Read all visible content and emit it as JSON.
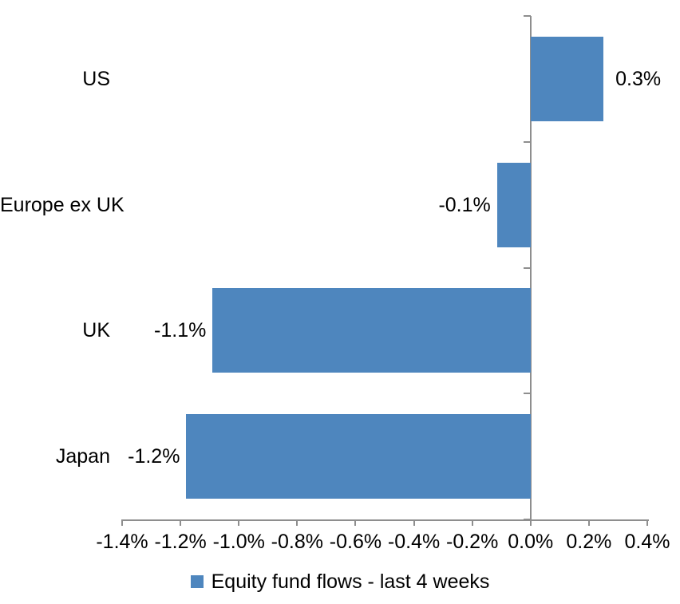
{
  "chart_data": {
    "type": "bar",
    "orientation": "horizontal",
    "title": "",
    "categories": [
      "US",
      "Europe ex UK",
      "UK",
      "Japan"
    ],
    "values": [
      0.3,
      -0.1,
      -1.1,
      -1.2
    ],
    "plotted_values": [
      0.25,
      -0.115,
      -1.09,
      -1.18
    ],
    "data_labels": [
      "0.3%",
      "-0.1%",
      "-1.1%",
      "-1.2%"
    ],
    "value_unit": "%",
    "xlim": [
      -1.4,
      0.4
    ],
    "x_ticks": [
      {
        "value": -1.4,
        "label": "-1.4%"
      },
      {
        "value": -1.2,
        "label": "-1.2%"
      },
      {
        "value": -1.0,
        "label": "-1.0%"
      },
      {
        "value": -0.8,
        "label": "-0.8%"
      },
      {
        "value": -0.6,
        "label": "-0.6%"
      },
      {
        "value": -0.4,
        "label": "-0.4%"
      },
      {
        "value": -0.2,
        "label": "-0.2%"
      },
      {
        "value": 0.0,
        "label": "0.0%"
      },
      {
        "value": 0.2,
        "label": "0.2%"
      },
      {
        "value": 0.4,
        "label": "0.4%"
      }
    ],
    "legend_label": "Equity fund flows - last 4 weeks",
    "legend_position": "bottom",
    "grid": false,
    "bar_color": "#4e86be",
    "axis_color": "#8e8e8e",
    "text_color": "#000000"
  }
}
